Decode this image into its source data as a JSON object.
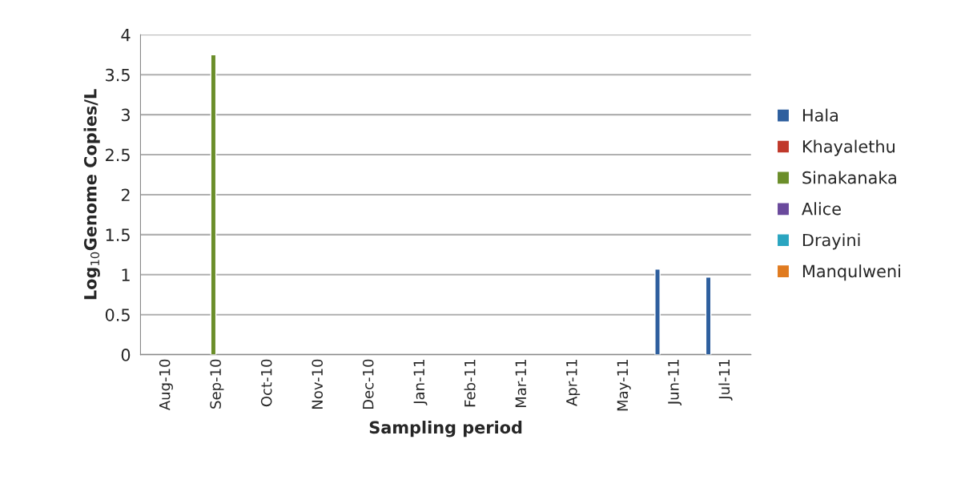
{
  "chart_data": {
    "type": "bar",
    "xlabel": "Sampling period",
    "ylabel": "Log$_{10}$Genome Copies/L",
    "categories": [
      "Aug-10",
      "Sep-10",
      "Oct-10",
      "Nov-10",
      "Dec-10",
      "Jan-11",
      "Feb-11",
      "Mar-11",
      "Apr-11",
      "May-11",
      "Jun-11",
      "Jul-11"
    ],
    "series": [
      {
        "name": "Hala",
        "color": "#2e5f9e",
        "values": [
          null,
          null,
          null,
          null,
          null,
          null,
          null,
          null,
          null,
          null,
          1.07,
          0.97
        ]
      },
      {
        "name": "Khayalethu",
        "color": "#c0392b",
        "values": [
          null,
          null,
          null,
          null,
          null,
          null,
          null,
          null,
          null,
          null,
          null,
          null
        ]
      },
      {
        "name": "Sinakanaka",
        "color": "#6b8e2a",
        "values": [
          null,
          3.75,
          null,
          null,
          null,
          null,
          null,
          null,
          null,
          null,
          null,
          null
        ]
      },
      {
        "name": "Alice",
        "color": "#6a4a9c",
        "values": [
          null,
          null,
          null,
          null,
          null,
          null,
          null,
          null,
          null,
          null,
          null,
          null
        ]
      },
      {
        "name": "Drayini",
        "color": "#2aa5c0",
        "values": [
          null,
          null,
          null,
          null,
          null,
          null,
          null,
          null,
          null,
          null,
          null,
          null
        ]
      },
      {
        "name": "Manqulweni",
        "color": "#e07b20",
        "values": [
          null,
          null,
          null,
          null,
          null,
          null,
          null,
          null,
          null,
          null,
          null,
          null
        ]
      }
    ],
    "ylim": [
      0,
      4
    ],
    "yticks": [
      0,
      0.5,
      1,
      1.5,
      2,
      2.5,
      3,
      3.5,
      4
    ],
    "grid": "y",
    "legend": "right"
  }
}
